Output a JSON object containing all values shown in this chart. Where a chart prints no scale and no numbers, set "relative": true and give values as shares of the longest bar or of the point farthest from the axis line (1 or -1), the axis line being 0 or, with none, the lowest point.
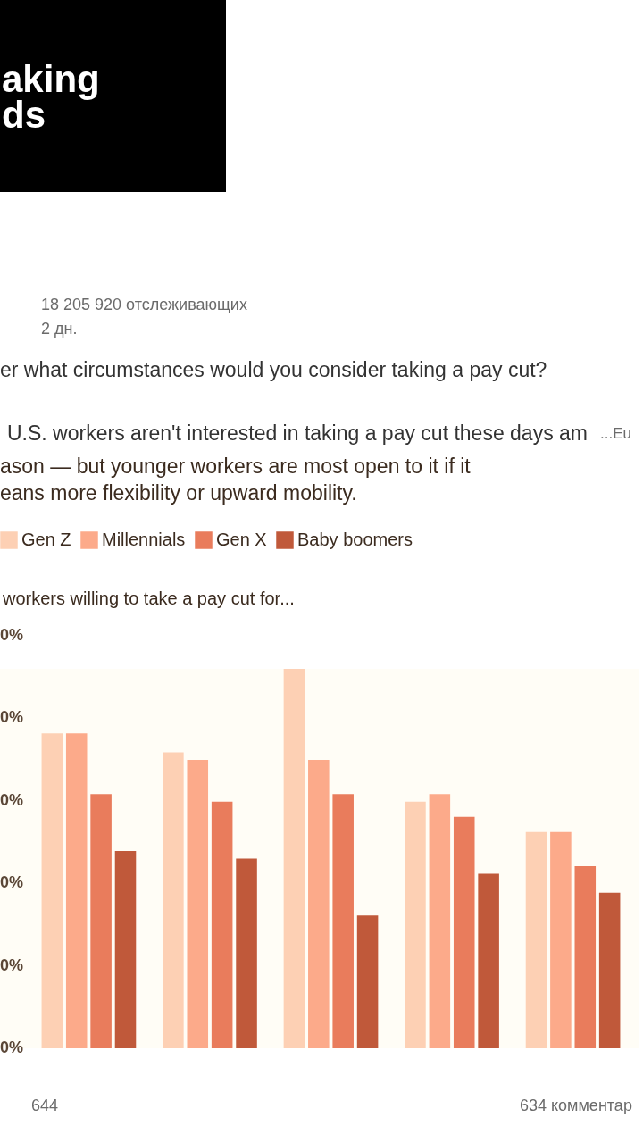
{
  "chart_data": {
    "type": "bar",
    "title": "ason — but younger workers are most open to it if it\neans more flexibility or upward mobility.",
    "ylabel": "workers willing to take a pay cut for...",
    "categories": [
      null,
      null,
      null,
      null,
      null
    ],
    "relative": true,
    "series": [
      {
        "name": "Gen Z",
        "color": "#fdd0b4",
        "values": [
          0.83,
          0.78,
          1,
          0.65,
          0.57
        ]
      },
      {
        "name": "Millennials",
        "color": "#fcaa8a",
        "values": [
          0.83,
          0.76,
          0.76,
          0.67,
          0.57
        ]
      },
      {
        "name": "Gen X",
        "color": "#e97c5c",
        "values": [
          0.67,
          0.65,
          0.67,
          0.61,
          0.48
        ]
      },
      {
        "name": "Baby boomers",
        "color": "#c0593a",
        "values": [
          0.52,
          0.5,
          0.35,
          0.46,
          0.41
        ]
      }
    ],
    "legend": "top left",
    "annotations": [
      "aking",
      "ds",
      "18 205 920 отслеживающих",
      "2 дн.",
      "er what circumstances would you consider taking a pay cut?",
      "U.S. workers aren't interested in taking a pay cut these days am",
      "...Eu",
      "0%",
      "0%",
      "0%",
      "0%",
      "0%",
      "0%",
      "644",
      "634 комментар"
    ]
  }
}
